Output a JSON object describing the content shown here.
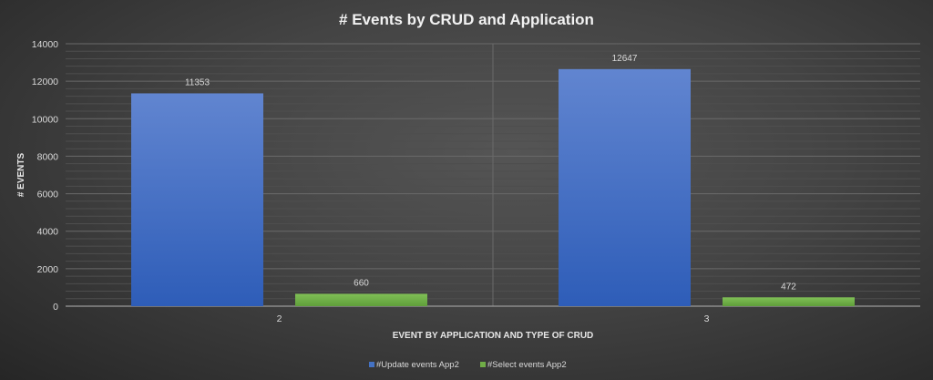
{
  "chart_data": {
    "type": "bar",
    "title": "# Events by CRUD and Application",
    "xlabel": "EVENT BY APPLICATION AND TYPE OF CRUD",
    "ylabel": "# EVENTS",
    "categories": [
      "2",
      "3"
    ],
    "series": [
      {
        "name": "#Update events App2",
        "values": [
          11353,
          12647
        ],
        "color": "#4472c4"
      },
      {
        "name": "#Select events App2",
        "values": [
          660,
          472
        ],
        "color": "#70ad47"
      }
    ],
    "ylim": [
      0,
      14000
    ],
    "yticks": [
      0,
      2000,
      4000,
      6000,
      8000,
      10000,
      12000,
      14000
    ],
    "grid": true,
    "minor_grid": true,
    "legend": "bottom",
    "data_labels": true
  }
}
